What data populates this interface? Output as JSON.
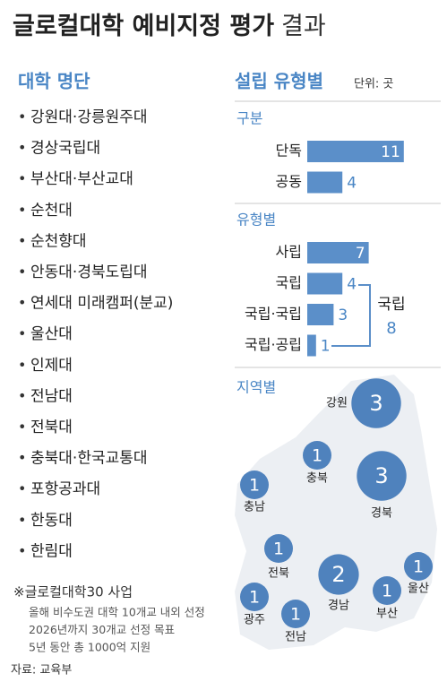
{
  "title": "글로컬대학 예비지정 평가",
  "title_suffix": "결과",
  "universities": {
    "heading": "대학 명단",
    "items": [
      "강원대·강릉원주대",
      "경상국립대",
      "부산대·부산교대",
      "순천대",
      "순천향대",
      "안동대·경북도립대",
      "연세대 미래캠퍼(분교)",
      "울산대",
      "인제대",
      "전남대",
      "전북대",
      "충북대·한국교통대",
      "포항공과대",
      "한동대",
      "한림대"
    ]
  },
  "stats": {
    "heading": "설립 유형별",
    "unit": "단위: 곳",
    "by_kind": {
      "label": "구분",
      "categories": [
        "단독",
        "공동"
      ],
      "values": [
        11,
        4
      ],
      "color": "#5b8fc9"
    },
    "by_type": {
      "label": "유형별",
      "categories": [
        "사립",
        "국립",
        "국립·국립",
        "국립·공립"
      ],
      "values": [
        7,
        4,
        3,
        1
      ],
      "color": "#5b8fc9",
      "group": {
        "label": "국립",
        "value": 8
      }
    },
    "by_region": {
      "label": "지역별",
      "color": "#4f82bd",
      "regions": [
        {
          "name": "강원",
          "value": 3
        },
        {
          "name": "충북",
          "value": 1
        },
        {
          "name": "충남",
          "value": 1
        },
        {
          "name": "경북",
          "value": 3
        },
        {
          "name": "전북",
          "value": 1
        },
        {
          "name": "경남",
          "value": 2
        },
        {
          "name": "울산",
          "value": 1
        },
        {
          "name": "부산",
          "value": 1
        },
        {
          "name": "광주",
          "value": 1
        },
        {
          "name": "전남",
          "value": 1
        }
      ]
    }
  },
  "program": {
    "heading": "※글로컬대학30 사업",
    "lines": [
      "올해 비수도권 대학 10개교 내외 선정",
      "2026년까지 30개교 선정 목표",
      "5년 동안 총 1000억 지원"
    ]
  },
  "source": "자료: 교육부"
}
